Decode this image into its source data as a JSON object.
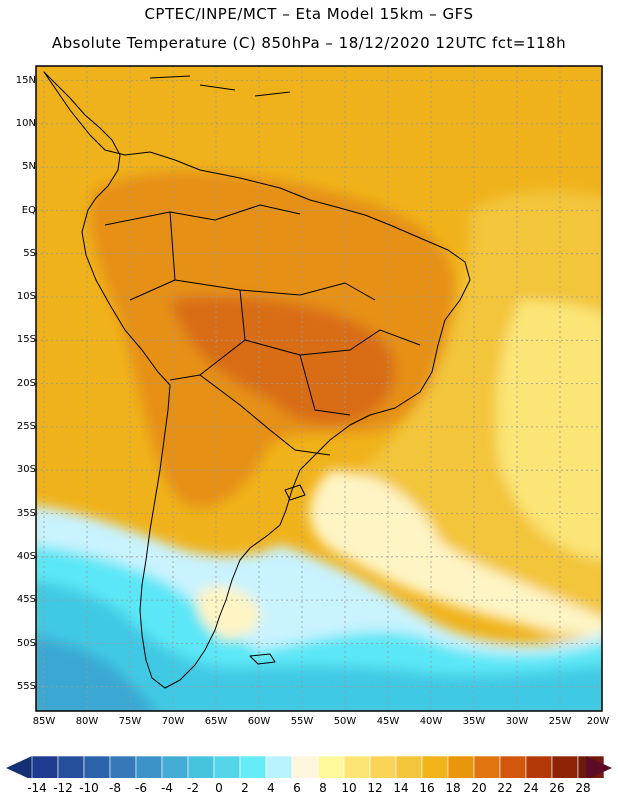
{
  "header": {
    "line1": "CPTEC/INPE/MCT –  Eta Model 15km – GFS",
    "line2": "Absolute Temperature (C) 850hPa – 18/12/2020 12UTC fct=118h"
  },
  "map": {
    "lat_labels": [
      "15N",
      "10N",
      "5N",
      "EQ",
      "5S",
      "10S",
      "15S",
      "20S",
      "25S",
      "30S",
      "35S",
      "40S",
      "45S",
      "50S",
      "55S"
    ],
    "lon_labels": [
      "85W",
      "80W",
      "75W",
      "70W",
      "65W",
      "60W",
      "55W",
      "50W",
      "45W",
      "40W",
      "35W",
      "30W",
      "25W",
      "20W"
    ],
    "colors": {
      "background": "#f0b21a",
      "land_warm": "#e69018",
      "land_hot": "#d96d12",
      "ocean_mild": "#f3c53a",
      "ocean_cool": "#fbe576",
      "pale": "#fef4c4",
      "cold_light": "#c9f3ff",
      "cold_mid": "#5ce7f6",
      "cold_deep": "#3fc9e4",
      "cold_deeper": "#3aa8d4",
      "coast": "#000000",
      "grid": "#9a9a9a"
    }
  },
  "colorbar": {
    "labels": [
      "-14",
      "-12",
      "-10",
      "-8",
      "-6",
      "-4",
      "-2",
      "0",
      "2",
      "4",
      "6",
      "8",
      "10",
      "12",
      "14",
      "16",
      "18",
      "20",
      "22",
      "24",
      "26",
      "28"
    ],
    "colors": [
      "#1f3b8f",
      "#254f9c",
      "#2b63aa",
      "#3579b8",
      "#3c93c7",
      "#42acd4",
      "#48c3df",
      "#55d6e8",
      "#65ecf6",
      "#b9f4fd",
      "#fdf5dc",
      "#fefa9c",
      "#fde575",
      "#f9d457",
      "#f3c53a",
      "#f1b21a",
      "#ea960b",
      "#e27510",
      "#d2570d",
      "#b43908",
      "#8e2306",
      "#6e1a0a"
    ],
    "low_cap": "#133074",
    "high_cap": "#5e0b25"
  }
}
